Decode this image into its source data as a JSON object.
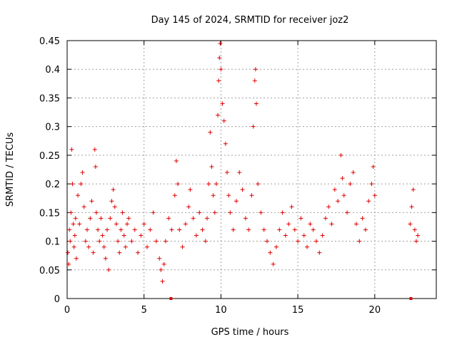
{
  "chart_data": {
    "type": "scatter",
    "title": "Day 145 of 2024, SRMTID for receiver joz2",
    "xlabel": "GPS time / hours",
    "ylabel": "SRMTID / TECUs",
    "xlim": [
      0,
      24
    ],
    "ylim": [
      0,
      0.45
    ],
    "xticks": [
      0,
      5,
      10,
      15,
      20
    ],
    "xtick_labels": [
      "0",
      "5",
      "10",
      "15",
      "20"
    ],
    "yticks": [
      0,
      0.05,
      0.1,
      0.15,
      0.2,
      0.25,
      0.3,
      0.35,
      0.4,
      0.45
    ],
    "ytick_labels": [
      "0",
      "0.05",
      "0.1",
      "0.15",
      "0.2",
      "0.25",
      "0.3",
      "0.35",
      "0.4",
      "0.45"
    ],
    "grid": true,
    "marker": "plus",
    "color": "#e00000",
    "series": [
      {
        "name": "SRMTID",
        "points": [
          [
            0.05,
            0.08
          ],
          [
            0.1,
            0.06
          ],
          [
            0.15,
            0.12
          ],
          [
            0.2,
            0.1
          ],
          [
            0.25,
            0.15
          ],
          [
            0.3,
            0.26
          ],
          [
            0.35,
            0.2
          ],
          [
            0.4,
            0.13
          ],
          [
            0.45,
            0.09
          ],
          [
            0.5,
            0.11
          ],
          [
            0.55,
            0.14
          ],
          [
            0.6,
            0.07
          ],
          [
            0.7,
            0.18
          ],
          [
            0.8,
            0.13
          ],
          [
            0.9,
            0.2
          ],
          [
            1.0,
            0.22
          ],
          [
            1.1,
            0.16
          ],
          [
            1.2,
            0.1
          ],
          [
            1.3,
            0.12
          ],
          [
            1.4,
            0.09
          ],
          [
            1.5,
            0.14
          ],
          [
            1.6,
            0.17
          ],
          [
            1.7,
            0.08
          ],
          [
            1.8,
            0.26
          ],
          [
            1.85,
            0.23
          ],
          [
            1.9,
            0.15
          ],
          [
            2.0,
            0.12
          ],
          [
            2.1,
            0.1
          ],
          [
            2.2,
            0.14
          ],
          [
            2.3,
            0.11
          ],
          [
            2.4,
            0.09
          ],
          [
            2.5,
            0.07
          ],
          [
            2.6,
            0.12
          ],
          [
            2.7,
            0.05
          ],
          [
            2.8,
            0.14
          ],
          [
            2.9,
            0.17
          ],
          [
            3.0,
            0.19
          ],
          [
            3.1,
            0.16
          ],
          [
            3.2,
            0.13
          ],
          [
            3.3,
            0.1
          ],
          [
            3.4,
            0.08
          ],
          [
            3.5,
            0.12
          ],
          [
            3.6,
            0.15
          ],
          [
            3.7,
            0.11
          ],
          [
            3.8,
            0.09
          ],
          [
            3.9,
            0.13
          ],
          [
            4.0,
            0.14
          ],
          [
            4.2,
            0.1
          ],
          [
            4.4,
            0.12
          ],
          [
            4.6,
            0.08
          ],
          [
            4.8,
            0.11
          ],
          [
            5.0,
            0.13
          ],
          [
            5.2,
            0.09
          ],
          [
            5.4,
            0.12
          ],
          [
            5.6,
            0.15
          ],
          [
            5.8,
            0.1
          ],
          [
            6.0,
            0.07
          ],
          [
            6.1,
            0.05
          ],
          [
            6.2,
            0.03
          ],
          [
            6.3,
            0.06
          ],
          [
            6.4,
            0.1
          ],
          [
            6.6,
            0.14
          ],
          [
            6.8,
            0.12
          ],
          [
            7.0,
            0.18
          ],
          [
            7.1,
            0.24
          ],
          [
            7.2,
            0.2
          ],
          [
            7.3,
            0.12
          ],
          [
            7.5,
            0.09
          ],
          [
            7.7,
            0.13
          ],
          [
            7.9,
            0.16
          ],
          [
            8.0,
            0.19
          ],
          [
            8.2,
            0.14
          ],
          [
            8.4,
            0.11
          ],
          [
            8.6,
            0.15
          ],
          [
            8.8,
            0.12
          ],
          [
            9.0,
            0.1
          ],
          [
            9.1,
            0.14
          ],
          [
            9.2,
            0.2
          ],
          [
            9.3,
            0.29
          ],
          [
            9.4,
            0.23
          ],
          [
            9.5,
            0.18
          ],
          [
            9.6,
            0.15
          ],
          [
            9.7,
            0.2
          ],
          [
            9.8,
            0.32
          ],
          [
            9.85,
            0.38
          ],
          [
            9.9,
            0.42
          ],
          [
            9.95,
            0.445
          ],
          [
            10.0,
            0.4
          ],
          [
            10.1,
            0.34
          ],
          [
            10.2,
            0.31
          ],
          [
            10.3,
            0.27
          ],
          [
            10.4,
            0.22
          ],
          [
            10.5,
            0.18
          ],
          [
            10.6,
            0.15
          ],
          [
            10.8,
            0.12
          ],
          [
            11.0,
            0.17
          ],
          [
            11.2,
            0.22
          ],
          [
            11.4,
            0.19
          ],
          [
            11.6,
            0.14
          ],
          [
            11.8,
            0.12
          ],
          [
            12.0,
            0.18
          ],
          [
            12.1,
            0.3
          ],
          [
            12.2,
            0.38
          ],
          [
            12.25,
            0.4
          ],
          [
            12.3,
            0.34
          ],
          [
            12.4,
            0.2
          ],
          [
            12.6,
            0.15
          ],
          [
            12.8,
            0.12
          ],
          [
            13.0,
            0.1
          ],
          [
            13.2,
            0.08
          ],
          [
            13.4,
            0.06
          ],
          [
            13.6,
            0.09
          ],
          [
            13.8,
            0.12
          ],
          [
            14.0,
            0.15
          ],
          [
            14.2,
            0.11
          ],
          [
            14.4,
            0.13
          ],
          [
            14.6,
            0.16
          ],
          [
            14.8,
            0.12
          ],
          [
            15.0,
            0.1
          ],
          [
            15.2,
            0.14
          ],
          [
            15.4,
            0.11
          ],
          [
            15.6,
            0.09
          ],
          [
            15.8,
            0.13
          ],
          [
            16.0,
            0.12
          ],
          [
            16.2,
            0.1
          ],
          [
            16.4,
            0.08
          ],
          [
            16.6,
            0.11
          ],
          [
            16.8,
            0.14
          ],
          [
            17.0,
            0.16
          ],
          [
            17.2,
            0.13
          ],
          [
            17.4,
            0.19
          ],
          [
            17.6,
            0.17
          ],
          [
            17.8,
            0.25
          ],
          [
            17.9,
            0.21
          ],
          [
            18.0,
            0.18
          ],
          [
            18.2,
            0.15
          ],
          [
            18.4,
            0.2
          ],
          [
            18.6,
            0.22
          ],
          [
            18.8,
            0.13
          ],
          [
            19.0,
            0.1
          ],
          [
            19.2,
            0.14
          ],
          [
            19.4,
            0.12
          ],
          [
            19.6,
            0.17
          ],
          [
            19.8,
            0.2
          ],
          [
            19.9,
            0.23
          ],
          [
            20.0,
            0.18
          ],
          [
            22.3,
            0.13
          ],
          [
            22.4,
            0.16
          ],
          [
            22.5,
            0.19
          ],
          [
            22.6,
            0.12
          ],
          [
            22.7,
            0.1
          ],
          [
            22.8,
            0.11
          ]
        ]
      }
    ],
    "zero_markers": [
      6.75,
      22.35
    ]
  }
}
